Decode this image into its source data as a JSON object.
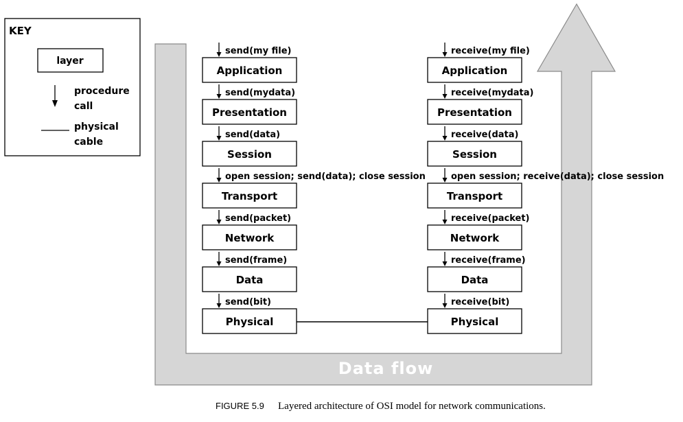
{
  "key": {
    "title": "KEY",
    "layer_label": "layer",
    "procedure_label_1": "procedure",
    "procedure_label_2": "call",
    "cable_label_1": "physical",
    "cable_label_2": "cable"
  },
  "sender": {
    "layers": [
      "Application",
      "Presentation",
      "Session",
      "Transport",
      "Network",
      "Data",
      "Physical"
    ],
    "calls": [
      "send(my file)",
      "send(mydata)",
      "send(data)",
      "open session; send(data); close session",
      "send(packet)",
      "send(frame)",
      "send(bit)"
    ]
  },
  "receiver": {
    "layers": [
      "Application",
      "Presentation",
      "Session",
      "Transport",
      "Network",
      "Data",
      "Physical"
    ],
    "calls": [
      "receive(my file)",
      "receive(mydata)",
      "receive(data)",
      "open session; receive(data); close session",
      "receive(packet)",
      "receive(frame)",
      "receive(bit)"
    ]
  },
  "flow_label": "Data flow",
  "caption": {
    "number": "FIGURE 5.9",
    "text": "Layered architecture of OSI model for network communications."
  },
  "colors": {
    "flow_fill": "#d6d6d6",
    "flow_stroke": "#8a8a8a",
    "line": "#000000"
  }
}
